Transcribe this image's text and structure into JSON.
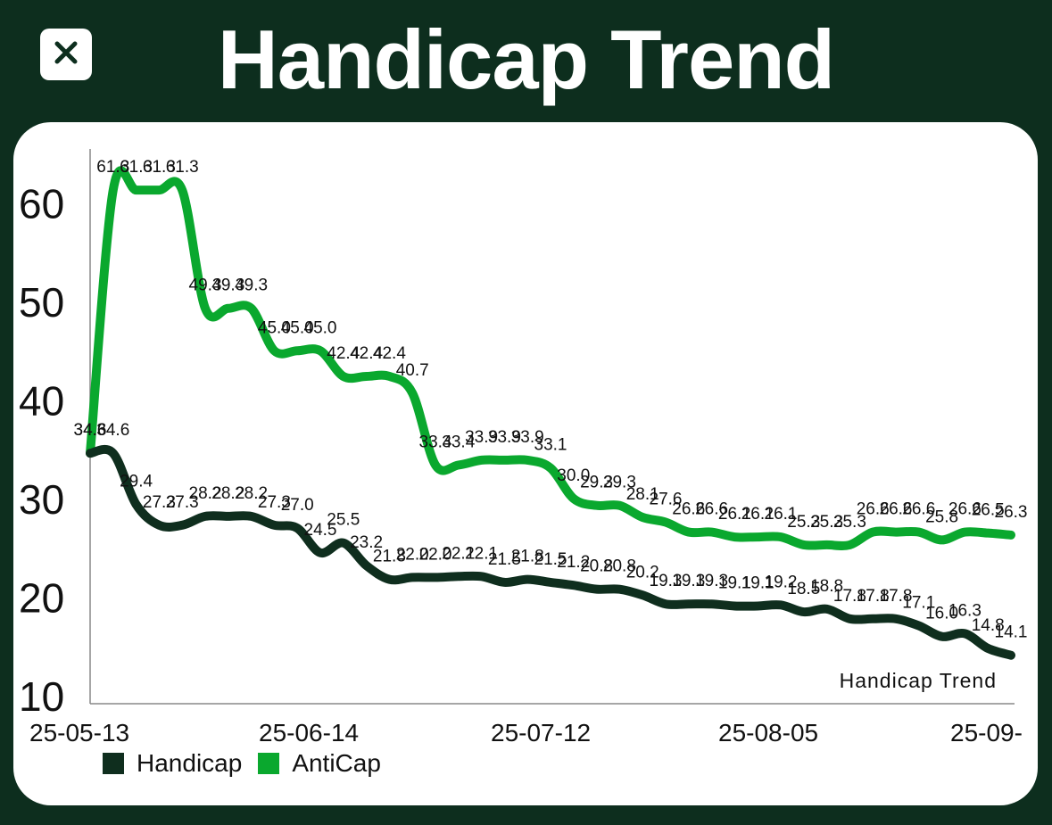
{
  "header": {
    "title": "Handicap Trend",
    "close_icon": "close-icon"
  },
  "colors": {
    "background": "#0d2e1e",
    "card": "#ffffff",
    "handicap": "#0f2e1e",
    "anticap": "#0aa82e"
  },
  "chart_data": {
    "type": "line",
    "title": "Handicap Trend",
    "xlabel": "",
    "ylabel": "",
    "ylim": [
      10,
      65
    ],
    "yticks": [
      10,
      20,
      30,
      40,
      50,
      60
    ],
    "x_tick_labels": [
      "25-05-13",
      "25-06-14",
      "25-07-12",
      "25-08-05",
      "25-09-"
    ],
    "grid": false,
    "legend_position": "bottom-left",
    "series": [
      {
        "name": "Handicap",
        "values": [
          34.6,
          34.6,
          29.4,
          27.3,
          27.3,
          28.2,
          28.2,
          28.2,
          27.3,
          27.0,
          24.5,
          25.5,
          23.2,
          21.8,
          22.0,
          22.0,
          22.1,
          22.1,
          21.5,
          21.8,
          21.5,
          21.2,
          20.8,
          20.8,
          20.2,
          19.3,
          19.3,
          19.3,
          19.1,
          19.1,
          19.2,
          18.5,
          18.8,
          17.8,
          17.8,
          17.8,
          17.1,
          16.0,
          16.3,
          14.8,
          14.1
        ]
      },
      {
        "name": "AntiCap",
        "values": [
          34.6,
          61.3,
          61.3,
          61.3,
          61.3,
          49.3,
          49.3,
          49.3,
          45.0,
          45.0,
          45.0,
          42.4,
          42.4,
          42.4,
          40.7,
          33.4,
          33.4,
          33.9,
          33.9,
          33.9,
          33.1,
          30.0,
          29.3,
          29.3,
          28.1,
          27.6,
          26.6,
          26.6,
          26.1,
          26.1,
          26.1,
          25.3,
          25.3,
          25.3,
          26.6,
          26.6,
          26.6,
          25.8,
          26.6,
          26.5,
          26.3
        ]
      }
    ],
    "point_labels": {
      "Handicap": [
        "34.6",
        "34.6",
        "29.4",
        "27.3",
        "27.3",
        "28.2",
        "28.2",
        "28.2",
        "27.3",
        "27.0",
        "24.5",
        "25.5",
        "23.2",
        "21.8",
        "22.0",
        "22.0",
        "22.1",
        "22.1",
        "21.5",
        "21.8",
        "21.5",
        "21.2",
        "20.8",
        "20.8",
        "20.2",
        "19.3",
        "19.3",
        "19.3",
        "19.1",
        "19.1",
        "19.2",
        "18.5",
        "18.8",
        "17.8",
        "17.8",
        "17.8",
        "17.1",
        "16.0",
        "16.3",
        "14.8",
        "14.1"
      ],
      "AntiCap": [
        "34.6",
        "61.3",
        "61.3",
        "61.3",
        "61.3",
        "49.3",
        "49.3",
        "49.3",
        "45.0",
        "45.0",
        "45.0",
        "42.4",
        "42.4",
        "42.4",
        "40.7",
        "33.4",
        "33.4",
        "33.9",
        "33.9",
        "33.9",
        "33.1",
        "30.0",
        "29.3",
        "29.3",
        "28.1",
        "27.6",
        "26.6",
        "26.6",
        "26.1",
        "26.1",
        "26.1",
        "25.3",
        "25.3",
        "25.3",
        "26.6",
        "26.6",
        "26.6",
        "25.8",
        "26.6",
        "26.5",
        "26.3"
      ]
    },
    "legend": [
      {
        "name": "Handicap"
      },
      {
        "name": "AntiCap"
      }
    ]
  }
}
